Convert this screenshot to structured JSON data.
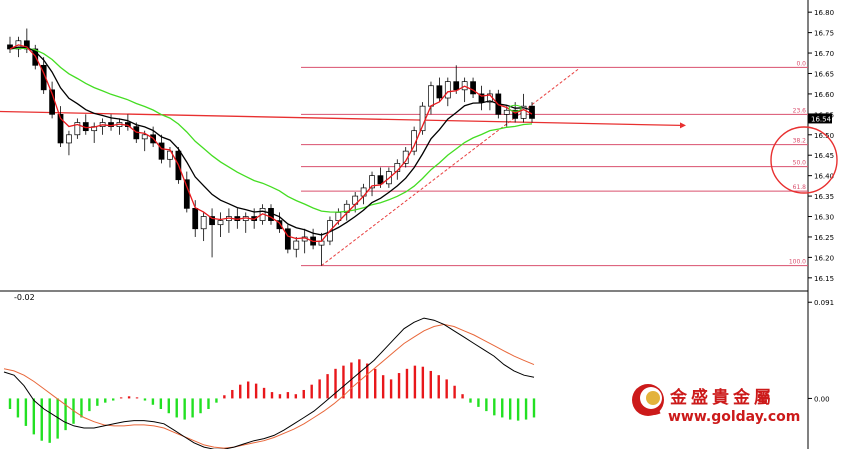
{
  "chart_data": [
    {
      "type": "candlestick",
      "y_axis_ticks": [
        "16.80",
        "16.75",
        "16.70",
        "16.65",
        "16.60",
        "16.55",
        "16.50",
        "16.45",
        "16.40",
        "16.35",
        "16.30",
        "16.25",
        "16.20",
        "16.15"
      ],
      "ylim": [
        16.13,
        16.82
      ],
      "current_price": "16.54",
      "fibonacci_levels": [
        {
          "label": "0.0",
          "value": 16.665
        },
        {
          "label": "23.6",
          "value": 16.55
        },
        {
          "label": "38.2",
          "value": 16.476
        },
        {
          "label": "50.0",
          "value": 16.422
        },
        {
          "label": "61.8",
          "value": 16.362
        },
        {
          "label": "100.0",
          "value": 16.18
        }
      ],
      "candles": [
        [
          16.72,
          16.74,
          16.7,
          16.71
        ],
        [
          16.71,
          16.74,
          16.69,
          16.73
        ],
        [
          16.73,
          16.76,
          16.7,
          16.71
        ],
        [
          16.71,
          16.72,
          16.66,
          16.67
        ],
        [
          16.67,
          16.69,
          16.6,
          16.61
        ],
        [
          16.61,
          16.63,
          16.54,
          16.55
        ],
        [
          16.55,
          16.57,
          16.47,
          16.48
        ],
        [
          16.48,
          16.51,
          16.45,
          16.5
        ],
        [
          16.5,
          16.54,
          16.49,
          16.53
        ],
        [
          16.53,
          16.55,
          16.5,
          16.51
        ],
        [
          16.51,
          16.53,
          16.48,
          16.52
        ],
        [
          16.52,
          16.54,
          16.5,
          16.53
        ],
        [
          16.53,
          16.55,
          16.51,
          16.52
        ],
        [
          16.52,
          16.54,
          16.5,
          16.53
        ],
        [
          16.53,
          16.55,
          16.51,
          16.52
        ],
        [
          16.52,
          16.53,
          16.48,
          16.49
        ],
        [
          16.49,
          16.51,
          16.46,
          16.5
        ],
        [
          16.5,
          16.52,
          16.47,
          16.48
        ],
        [
          16.48,
          16.5,
          16.43,
          16.44
        ],
        [
          16.44,
          16.47,
          16.42,
          16.46
        ],
        [
          16.46,
          16.47,
          16.38,
          16.39
        ],
        [
          16.39,
          16.41,
          16.31,
          16.32
        ],
        [
          16.32,
          16.34,
          16.25,
          16.27
        ],
        [
          16.27,
          16.31,
          16.24,
          16.3
        ],
        [
          16.3,
          16.32,
          16.2,
          16.28
        ],
        [
          16.28,
          16.31,
          16.25,
          16.29
        ],
        [
          16.29,
          16.32,
          16.26,
          16.3
        ],
        [
          16.3,
          16.32,
          16.27,
          16.29
        ],
        [
          16.29,
          16.31,
          16.26,
          16.3
        ],
        [
          16.3,
          16.32,
          16.27,
          16.29
        ],
        [
          16.29,
          16.33,
          16.28,
          16.32
        ],
        [
          16.32,
          16.33,
          16.28,
          16.29
        ],
        [
          16.29,
          16.31,
          16.26,
          16.27
        ],
        [
          16.27,
          16.28,
          16.21,
          16.22
        ],
        [
          16.22,
          16.25,
          16.2,
          16.24
        ],
        [
          16.24,
          16.27,
          16.21,
          16.25
        ],
        [
          16.25,
          16.27,
          16.22,
          16.23
        ],
        [
          16.23,
          16.26,
          16.18,
          16.24
        ],
        [
          16.24,
          16.3,
          16.23,
          16.29
        ],
        [
          16.29,
          16.32,
          16.28,
          16.31
        ],
        [
          16.31,
          16.34,
          16.29,
          16.33
        ],
        [
          16.33,
          16.36,
          16.31,
          16.35
        ],
        [
          16.35,
          16.38,
          16.33,
          16.37
        ],
        [
          16.37,
          16.41,
          16.35,
          16.4
        ],
        [
          16.4,
          16.42,
          16.37,
          16.38
        ],
        [
          16.38,
          16.42,
          16.37,
          16.41
        ],
        [
          16.41,
          16.44,
          16.39,
          16.43
        ],
        [
          16.43,
          16.47,
          16.42,
          16.46
        ],
        [
          16.46,
          16.52,
          16.45,
          16.51
        ],
        [
          16.51,
          16.58,
          16.5,
          16.57
        ],
        [
          16.57,
          16.63,
          16.55,
          16.62
        ],
        [
          16.62,
          16.64,
          16.58,
          16.59
        ],
        [
          16.59,
          16.64,
          16.57,
          16.63
        ],
        [
          16.63,
          16.67,
          16.6,
          16.61
        ],
        [
          16.61,
          16.64,
          16.58,
          16.63
        ],
        [
          16.63,
          16.64,
          16.59,
          16.6
        ],
        [
          16.6,
          16.62,
          16.56,
          16.58
        ],
        [
          16.58,
          16.61,
          16.56,
          16.6
        ],
        [
          16.6,
          16.61,
          16.54,
          16.55
        ],
        [
          16.55,
          16.57,
          16.52,
          16.56
        ],
        [
          16.56,
          16.58,
          16.53,
          16.54
        ],
        [
          16.54,
          16.6,
          16.53,
          16.57
        ],
        [
          16.57,
          16.58,
          16.53,
          16.54
        ]
      ]
    },
    {
      "type": "macd",
      "y_axis_ticks": [
        "0.091",
        "0.00"
      ],
      "min_label": "-0.02",
      "ylim": [
        -0.045,
        0.095
      ],
      "histogram": [
        -0.01,
        -0.018,
        -0.026,
        -0.034,
        -0.04,
        -0.042,
        -0.038,
        -0.03,
        -0.024,
        -0.018,
        -0.012,
        -0.007,
        -0.004,
        -0.002,
        0.001,
        0.002,
        0.001,
        -0.002,
        -0.006,
        -0.01,
        -0.014,
        -0.018,
        -0.02,
        -0.018,
        -0.014,
        -0.01,
        -0.004,
        0.003,
        0.008,
        0.013,
        0.016,
        0.014,
        0.01,
        0.006,
        0.004,
        0.006,
        0.004,
        0.008,
        0.013,
        0.018,
        0.023,
        0.028,
        0.031,
        0.034,
        0.037,
        0.033,
        0.028,
        0.022,
        0.018,
        0.024,
        0.028,
        0.031,
        0.03,
        0.026,
        0.022,
        0.018,
        0.012,
        0.004,
        -0.004,
        -0.008,
        -0.012,
        -0.016,
        -0.018,
        -0.02,
        -0.021,
        -0.02,
        -0.018
      ],
      "macd_line": [
        0.025,
        0.022,
        0.012,
        -0.002,
        -0.01,
        -0.016,
        -0.022,
        -0.026,
        -0.028,
        -0.028,
        -0.026,
        -0.024,
        -0.022,
        -0.021,
        -0.021,
        -0.022,
        -0.024,
        -0.03,
        -0.036,
        -0.042,
        -0.046,
        -0.048,
        -0.048,
        -0.046,
        -0.043,
        -0.04,
        -0.038,
        -0.035,
        -0.03,
        -0.024,
        -0.018,
        -0.012,
        -0.004,
        0.004,
        0.012,
        0.02,
        0.028,
        0.036,
        0.046,
        0.056,
        0.066,
        0.072,
        0.076,
        0.074,
        0.07,
        0.064,
        0.058,
        0.052,
        0.046,
        0.04,
        0.032,
        0.026,
        0.022,
        0.02
      ],
      "signal_line": [
        0.028,
        0.026,
        0.022,
        0.016,
        0.009,
        0.002,
        -0.005,
        -0.012,
        -0.018,
        -0.022,
        -0.025,
        -0.026,
        -0.026,
        -0.025,
        -0.025,
        -0.026,
        -0.028,
        -0.032,
        -0.036,
        -0.04,
        -0.044,
        -0.046,
        -0.047,
        -0.046,
        -0.044,
        -0.042,
        -0.04,
        -0.037,
        -0.033,
        -0.029,
        -0.024,
        -0.018,
        -0.012,
        -0.005,
        0.003,
        0.012,
        0.02,
        0.028,
        0.036,
        0.044,
        0.052,
        0.058,
        0.064,
        0.068,
        0.07,
        0.068,
        0.064,
        0.06,
        0.055,
        0.05,
        0.045,
        0.04,
        0.036,
        0.032
      ]
    }
  ],
  "logo": {
    "name_cn": "金盛貴金屬",
    "url": "www.golday.com"
  },
  "colors": {
    "bull_histogram": "#e8171b",
    "bear_histogram": "#22e022",
    "ma_fast": "#e8171b",
    "ma_mid": "#000000",
    "ma_slow": "#44dd22",
    "fib_line": "#d9506e",
    "annotation": "#e83030",
    "logo_red": "#cc1a1a"
  }
}
